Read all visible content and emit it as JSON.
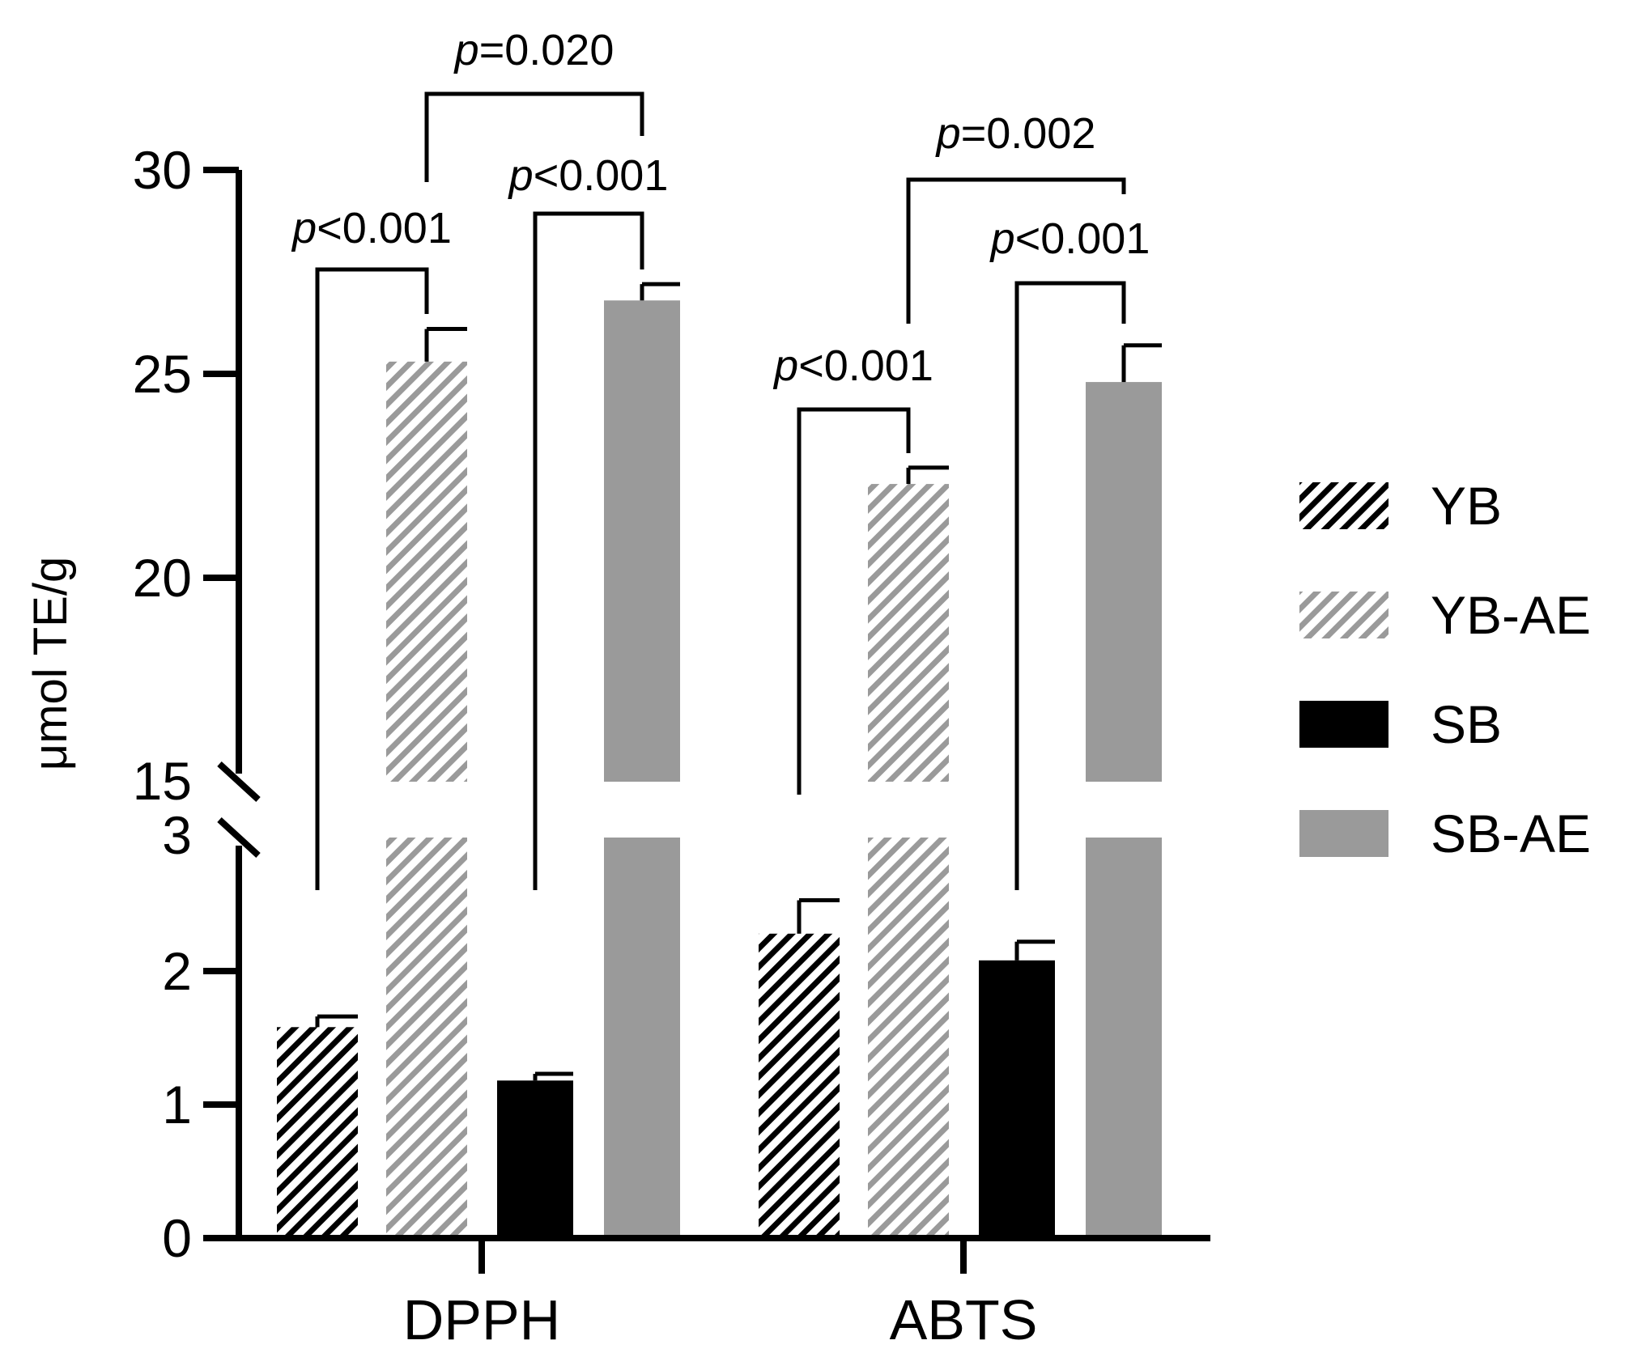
{
  "chart_data": {
    "type": "bar",
    "title": "",
    "xlabel": "",
    "ylabel": "μmol TE/g",
    "axis_break": {
      "lower_range": [
        0,
        3
      ],
      "upper_range": [
        15,
        30
      ]
    },
    "lower_ticks": [
      0,
      1,
      2,
      3
    ],
    "upper_ticks": [
      15,
      20,
      25,
      30
    ],
    "categories": [
      "DPPH",
      "ABTS"
    ],
    "series": [
      {
        "name": "YB",
        "pattern": "hatch",
        "color": "#000000",
        "values": [
          1.58,
          2.28
        ],
        "errors": [
          0.08,
          0.25
        ]
      },
      {
        "name": "YB-AE",
        "pattern": "hatch",
        "color": "#9a9a9a",
        "values": [
          25.3,
          22.3
        ],
        "errors": [
          0.8,
          0.4
        ]
      },
      {
        "name": "SB",
        "pattern": "solid",
        "color": "#000000",
        "values": [
          1.18,
          2.08
        ],
        "errors": [
          0.05,
          0.14
        ]
      },
      {
        "name": "SB-AE",
        "pattern": "solid",
        "color": "#9a9a9a",
        "values": [
          26.8,
          24.8
        ],
        "errors": [
          0.4,
          0.9
        ]
      }
    ],
    "comparisons": [
      {
        "category": "DPPH",
        "from": "YB",
        "to": "YB-AE",
        "label_prefix": "p",
        "label_rest": "<0.001"
      },
      {
        "category": "DPPH",
        "from": "SB",
        "to": "SB-AE",
        "label_prefix": "p",
        "label_rest": "<0.001"
      },
      {
        "category": "DPPH",
        "from": "YB-AE",
        "to": "SB-AE",
        "label_prefix": "p",
        "label_rest": "=0.020"
      },
      {
        "category": "ABTS",
        "from": "YB",
        "to": "YB-AE",
        "label_prefix": "p",
        "label_rest": "<0.001"
      },
      {
        "category": "ABTS",
        "from": "SB",
        "to": "SB-AE",
        "label_prefix": "p",
        "label_rest": "<0.001"
      },
      {
        "category": "ABTS",
        "from": "YB-AE",
        "to": "SB-AE",
        "label_prefix": "p",
        "label_rest": "=0.002"
      }
    ],
    "legend_position": "right"
  }
}
